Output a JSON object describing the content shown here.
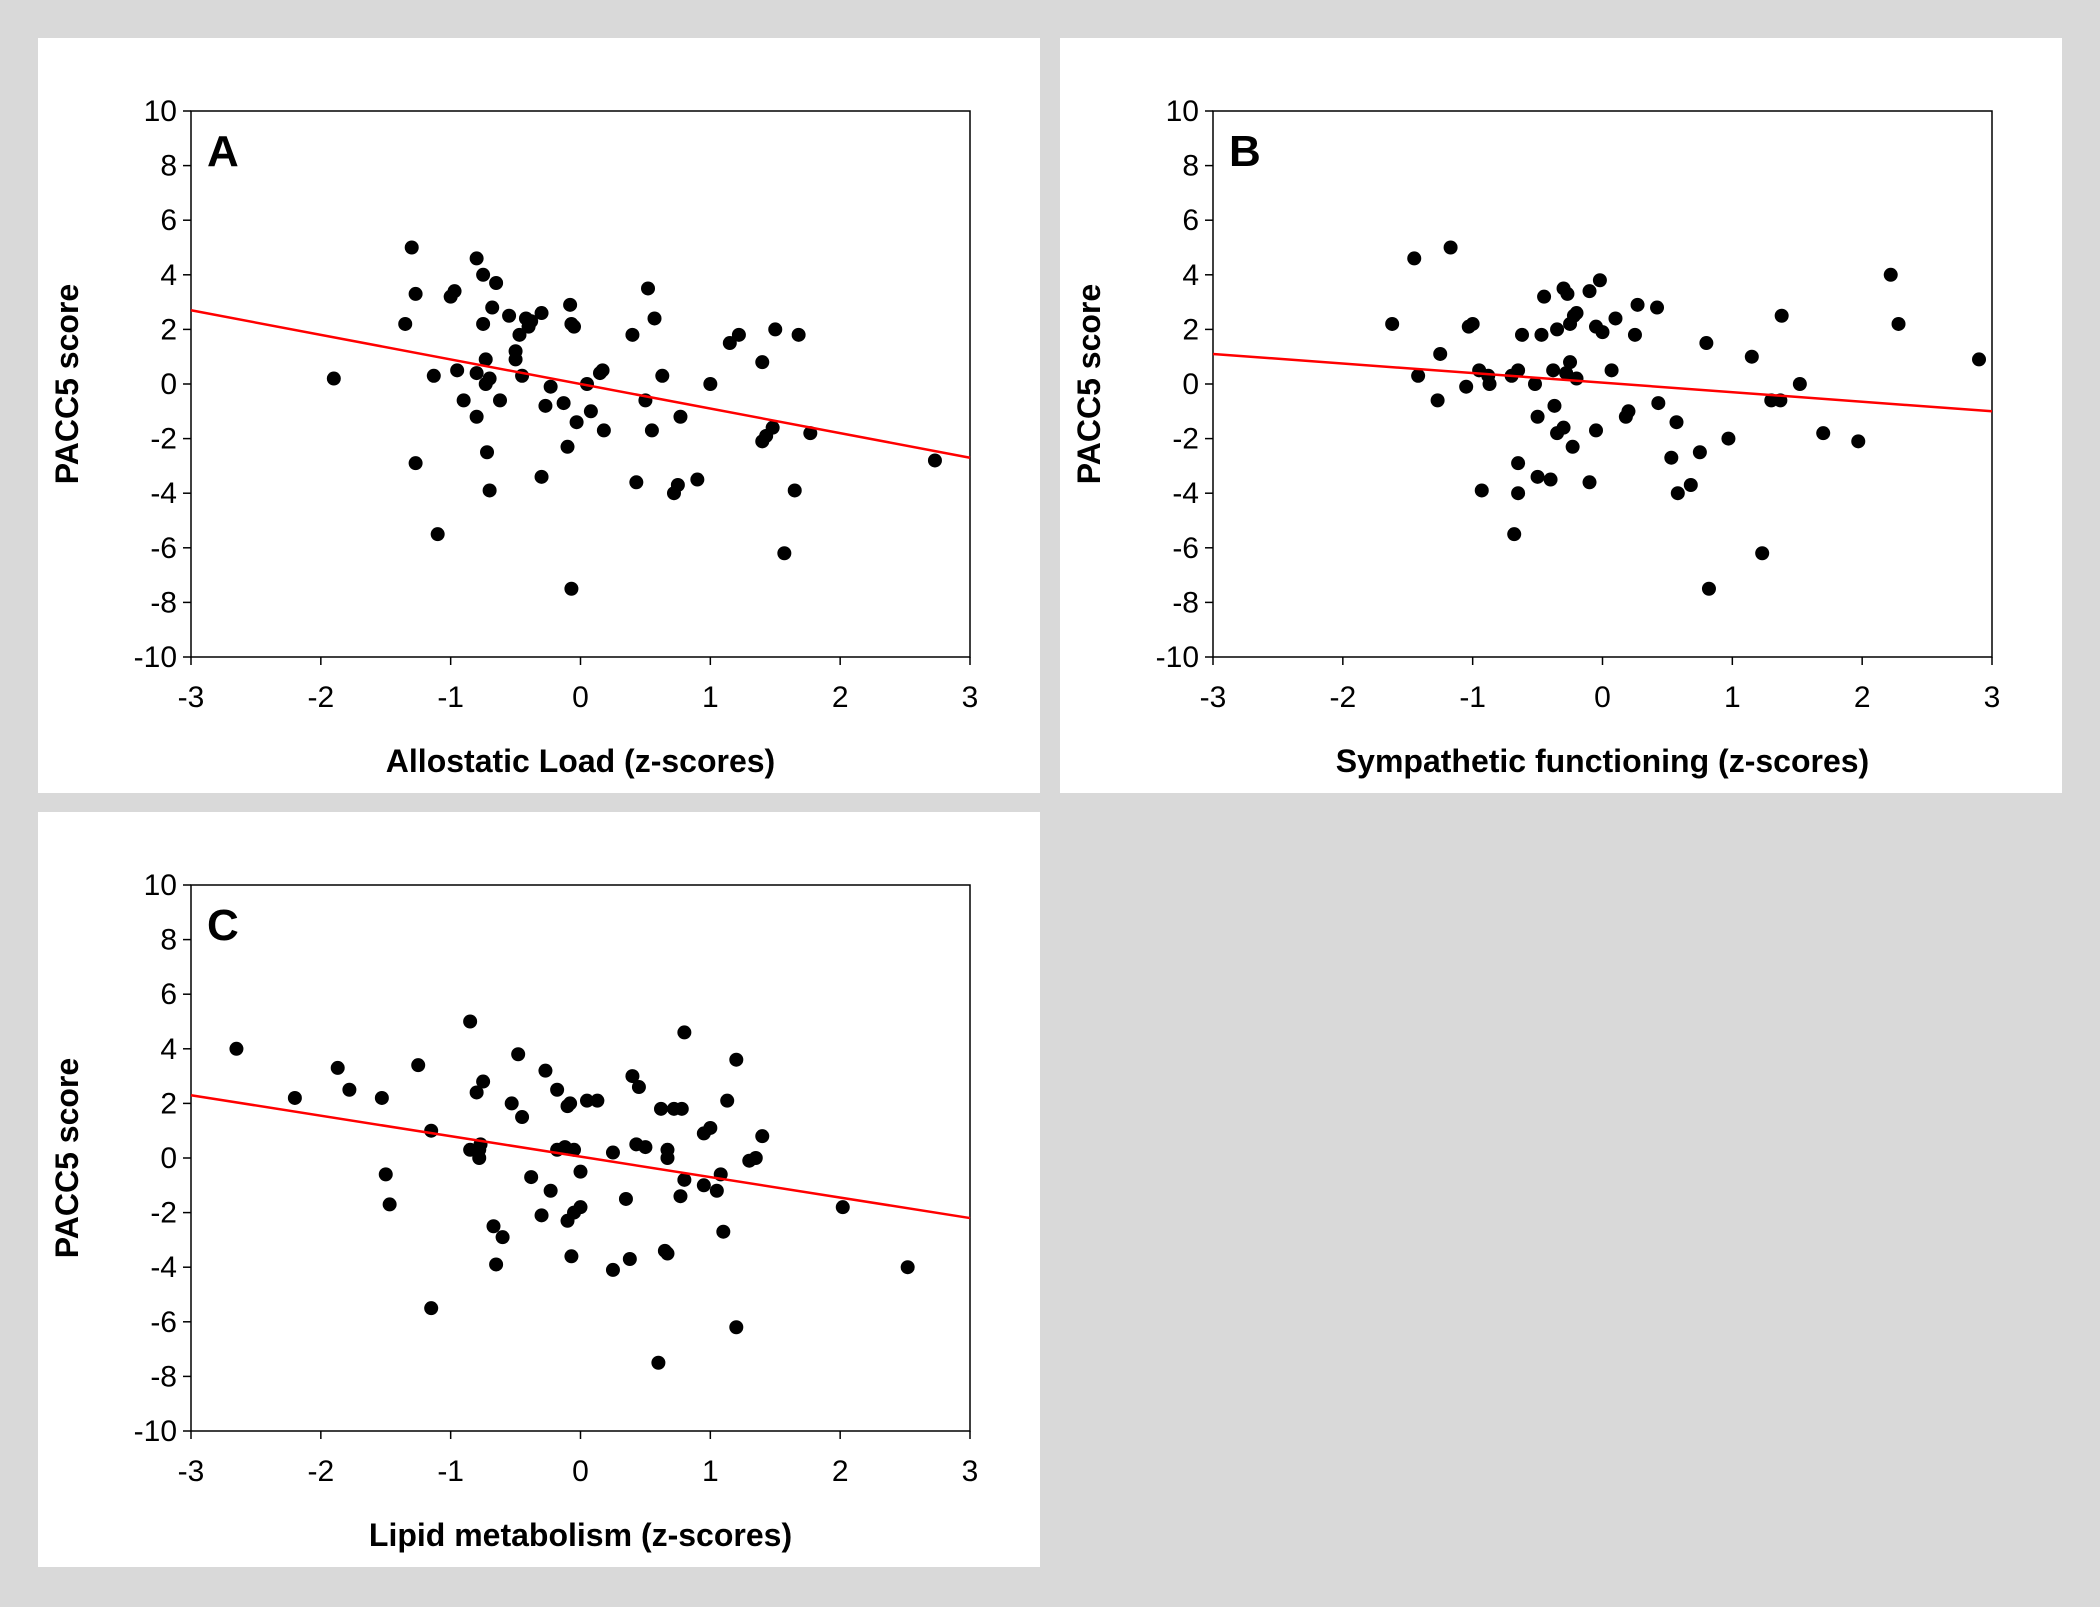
{
  "chart_data": [
    {
      "type": "scatter",
      "panel_label": "A",
      "xlabel": "Allostatic Load (z-scores)",
      "ylabel": "PACC5 score",
      "xlim": [
        -3,
        3
      ],
      "ylim": [
        -10,
        10
      ],
      "xticks": [
        "-3",
        "-2",
        "-1",
        "0",
        "1",
        "2",
        "3"
      ],
      "yticks": [
        "10",
        "8",
        "6",
        "4",
        "2",
        "0",
        "-2",
        "-4",
        "-6",
        "-8",
        "-10"
      ],
      "fit_line": {
        "color": "#ff0000",
        "x": [
          -3,
          3
        ],
        "y": [
          2.7,
          -2.7
        ]
      },
      "point_color": "#000000",
      "points": [
        [
          -1.9,
          0.2
        ],
        [
          -1.35,
          2.2
        ],
        [
          -1.3,
          5.0
        ],
        [
          -1.27,
          3.3
        ],
        [
          -1.27,
          -2.9
        ],
        [
          -1.13,
          0.3
        ],
        [
          -1.1,
          -5.5
        ],
        [
          -1.0,
          3.2
        ],
        [
          -0.97,
          3.4
        ],
        [
          -0.95,
          0.5
        ],
        [
          -0.9,
          -0.6
        ],
        [
          -0.8,
          4.6
        ],
        [
          -0.8,
          0.4
        ],
        [
          -0.8,
          -1.2
        ],
        [
          -0.75,
          4.0
        ],
        [
          -0.75,
          2.2
        ],
        [
          -0.73,
          0.0
        ],
        [
          -0.73,
          0.9
        ],
        [
          -0.72,
          -2.5
        ],
        [
          -0.7,
          0.2
        ],
        [
          -0.7,
          -3.9
        ],
        [
          -0.68,
          2.8
        ],
        [
          -0.65,
          3.7
        ],
        [
          -0.62,
          -0.6
        ],
        [
          -0.55,
          2.5
        ],
        [
          -0.5,
          1.2
        ],
        [
          -0.5,
          0.9
        ],
        [
          -0.47,
          1.8
        ],
        [
          -0.45,
          0.3
        ],
        [
          -0.42,
          2.4
        ],
        [
          -0.4,
          2.1
        ],
        [
          -0.38,
          2.3
        ],
        [
          -0.3,
          2.6
        ],
        [
          -0.3,
          -3.4
        ],
        [
          -0.27,
          -0.8
        ],
        [
          -0.23,
          -0.1
        ],
        [
          -0.13,
          -0.7
        ],
        [
          -0.1,
          -2.3
        ],
        [
          -0.08,
          2.9
        ],
        [
          -0.07,
          2.2
        ],
        [
          -0.07,
          -7.5
        ],
        [
          -0.05,
          2.1
        ],
        [
          -0.03,
          -1.4
        ],
        [
          0.05,
          0.0
        ],
        [
          0.08,
          -1.0
        ],
        [
          0.15,
          0.4
        ],
        [
          0.17,
          0.5
        ],
        [
          0.18,
          -1.7
        ],
        [
          0.4,
          1.8
        ],
        [
          0.43,
          -3.6
        ],
        [
          0.5,
          -0.6
        ],
        [
          0.52,
          3.5
        ],
        [
          0.55,
          -1.7
        ],
        [
          0.57,
          2.4
        ],
        [
          0.63,
          0.3
        ],
        [
          0.72,
          -4.0
        ],
        [
          0.75,
          -3.7
        ],
        [
          0.77,
          -1.2
        ],
        [
          0.9,
          -3.5
        ],
        [
          1.0,
          0.0
        ],
        [
          1.15,
          1.5
        ],
        [
          1.22,
          1.8
        ],
        [
          1.4,
          0.8
        ],
        [
          1.4,
          -2.1
        ],
        [
          1.43,
          -1.9
        ],
        [
          1.48,
          -1.6
        ],
        [
          1.5,
          2.0
        ],
        [
          1.57,
          -6.2
        ],
        [
          1.65,
          -3.9
        ],
        [
          1.68,
          1.8
        ],
        [
          1.77,
          -1.8
        ],
        [
          2.73,
          -2.8
        ]
      ]
    },
    {
      "type": "scatter",
      "panel_label": "B",
      "xlabel": "Sympathetic functioning (z-scores)",
      "ylabel": "PACC5 score",
      "xlim": [
        -3,
        3
      ],
      "ylim": [
        -10,
        10
      ],
      "xticks": [
        "-3",
        "-2",
        "-1",
        "0",
        "1",
        "2",
        "3"
      ],
      "yticks": [
        "10",
        "8",
        "6",
        "4",
        "2",
        "0",
        "-2",
        "-4",
        "-6",
        "-8",
        "-10"
      ],
      "fit_line": {
        "color": "#ff0000",
        "x": [
          -3,
          3
        ],
        "y": [
          1.1,
          -1.0
        ]
      },
      "point_color": "#000000",
      "points": [
        [
          -1.62,
          2.2
        ],
        [
          -1.45,
          4.6
        ],
        [
          -1.42,
          0.3
        ],
        [
          -1.27,
          -0.6
        ],
        [
          -1.25,
          1.1
        ],
        [
          -1.17,
          5.0
        ],
        [
          -1.05,
          -0.1
        ],
        [
          -1.03,
          2.1
        ],
        [
          -1.0,
          2.2
        ],
        [
          -0.95,
          0.5
        ],
        [
          -0.93,
          -3.9
        ],
        [
          -0.88,
          0.3
        ],
        [
          -0.87,
          0.0
        ],
        [
          -0.7,
          0.3
        ],
        [
          -0.68,
          -5.5
        ],
        [
          -0.65,
          0.5
        ],
        [
          -0.65,
          -2.9
        ],
        [
          -0.65,
          -4.0
        ],
        [
          -0.62,
          1.8
        ],
        [
          -0.52,
          0.0
        ],
        [
          -0.5,
          -1.2
        ],
        [
          -0.5,
          -3.4
        ],
        [
          -0.47,
          1.8
        ],
        [
          -0.45,
          3.2
        ],
        [
          -0.4,
          -3.5
        ],
        [
          -0.38,
          0.5
        ],
        [
          -0.37,
          -0.8
        ],
        [
          -0.35,
          -1.8
        ],
        [
          -0.35,
          2.0
        ],
        [
          -0.3,
          3.5
        ],
        [
          -0.3,
          -1.6
        ],
        [
          -0.28,
          0.4
        ],
        [
          -0.27,
          3.3
        ],
        [
          -0.25,
          0.8
        ],
        [
          -0.25,
          2.2
        ],
        [
          -0.23,
          -2.3
        ],
        [
          -0.22,
          2.5
        ],
        [
          -0.2,
          2.6
        ],
        [
          -0.2,
          0.2
        ],
        [
          -0.1,
          3.4
        ],
        [
          -0.1,
          -3.6
        ],
        [
          -0.05,
          -1.7
        ],
        [
          -0.05,
          2.1
        ],
        [
          -0.02,
          3.8
        ],
        [
          0.0,
          1.9
        ],
        [
          0.07,
          0.5
        ],
        [
          0.1,
          2.4
        ],
        [
          0.18,
          -1.2
        ],
        [
          0.2,
          -1.0
        ],
        [
          0.25,
          1.8
        ],
        [
          0.27,
          2.9
        ],
        [
          0.42,
          2.8
        ],
        [
          0.43,
          -0.7
        ],
        [
          0.53,
          -2.7
        ],
        [
          0.57,
          -1.4
        ],
        [
          0.58,
          -4.0
        ],
        [
          0.68,
          -3.7
        ],
        [
          0.75,
          -2.5
        ],
        [
          0.8,
          1.5
        ],
        [
          0.82,
          -7.5
        ],
        [
          0.97,
          -2.0
        ],
        [
          1.15,
          1.0
        ],
        [
          1.23,
          -6.2
        ],
        [
          1.3,
          -0.6
        ],
        [
          1.37,
          -0.6
        ],
        [
          1.38,
          2.5
        ],
        [
          1.52,
          0.0
        ],
        [
          1.7,
          -1.8
        ],
        [
          1.97,
          -2.1
        ],
        [
          2.22,
          4.0
        ],
        [
          2.28,
          2.2
        ],
        [
          2.9,
          0.9
        ]
      ]
    },
    {
      "type": "scatter",
      "panel_label": "C",
      "xlabel": "Lipid metabolism (z-scores)",
      "ylabel": "PACC5 score",
      "xlim": [
        -3,
        3
      ],
      "ylim": [
        -10,
        10
      ],
      "xticks": [
        "-3",
        "-2",
        "-1",
        "0",
        "1",
        "2",
        "3"
      ],
      "yticks": [
        "10",
        "8",
        "6",
        "4",
        "2",
        "0",
        "-2",
        "-4",
        "-6",
        "-8",
        "-10"
      ],
      "fit_line": {
        "color": "#ff0000",
        "x": [
          -3,
          3
        ],
        "y": [
          2.3,
          -2.2
        ]
      },
      "point_color": "#000000",
      "points": [
        [
          -2.65,
          4.0
        ],
        [
          -2.2,
          2.2
        ],
        [
          -1.87,
          3.3
        ],
        [
          -1.78,
          2.5
        ],
        [
          -1.53,
          2.2
        ],
        [
          -1.5,
          -0.6
        ],
        [
          -1.47,
          -1.7
        ],
        [
          -1.25,
          3.4
        ],
        [
          -1.15,
          1.0
        ],
        [
          -1.15,
          -5.5
        ],
        [
          -0.85,
          5.0
        ],
        [
          -0.85,
          0.3
        ],
        [
          -0.8,
          2.4
        ],
        [
          -0.78,
          0.3
        ],
        [
          -0.78,
          0.0
        ],
        [
          -0.77,
          0.5
        ],
        [
          -0.75,
          2.8
        ],
        [
          -0.67,
          -2.5
        ],
        [
          -0.65,
          -3.9
        ],
        [
          -0.6,
          -2.9
        ],
        [
          -0.53,
          2.0
        ],
        [
          -0.48,
          3.8
        ],
        [
          -0.45,
          1.5
        ],
        [
          -0.38,
          -0.7
        ],
        [
          -0.3,
          -2.1
        ],
        [
          -0.27,
          3.2
        ],
        [
          -0.23,
          -1.2
        ],
        [
          -0.18,
          2.5
        ],
        [
          -0.18,
          0.3
        ],
        [
          -0.12,
          0.4
        ],
        [
          -0.1,
          1.9
        ],
        [
          -0.1,
          -2.3
        ],
        [
          -0.08,
          2.0
        ],
        [
          -0.07,
          -3.6
        ],
        [
          -0.05,
          -2.0
        ],
        [
          -0.05,
          0.3
        ],
        [
          0.0,
          -0.5
        ],
        [
          0.0,
          -1.8
        ],
        [
          0.05,
          2.1
        ],
        [
          0.13,
          2.1
        ],
        [
          0.25,
          0.2
        ],
        [
          0.25,
          -4.1
        ],
        [
          0.35,
          -1.5
        ],
        [
          0.38,
          -3.7
        ],
        [
          0.4,
          3.0
        ],
        [
          0.43,
          0.5
        ],
        [
          0.45,
          2.6
        ],
        [
          0.5,
          0.4
        ],
        [
          0.6,
          -7.5
        ],
        [
          0.62,
          1.8
        ],
        [
          0.65,
          -3.4
        ],
        [
          0.67,
          -3.5
        ],
        [
          0.67,
          0.3
        ],
        [
          0.67,
          0.0
        ],
        [
          0.72,
          1.8
        ],
        [
          0.77,
          -1.4
        ],
        [
          0.78,
          1.8
        ],
        [
          0.8,
          4.6
        ],
        [
          0.8,
          -0.8
        ],
        [
          0.95,
          0.9
        ],
        [
          0.95,
          -1.0
        ],
        [
          1.0,
          1.1
        ],
        [
          1.05,
          -1.2
        ],
        [
          1.08,
          -0.6
        ],
        [
          1.1,
          -2.7
        ],
        [
          1.13,
          2.1
        ],
        [
          1.2,
          3.6
        ],
        [
          1.2,
          -6.2
        ],
        [
          1.3,
          -0.1
        ],
        [
          1.35,
          0.0
        ],
        [
          1.4,
          0.8
        ],
        [
          2.02,
          -1.8
        ],
        [
          2.52,
          -4.0
        ]
      ]
    }
  ]
}
